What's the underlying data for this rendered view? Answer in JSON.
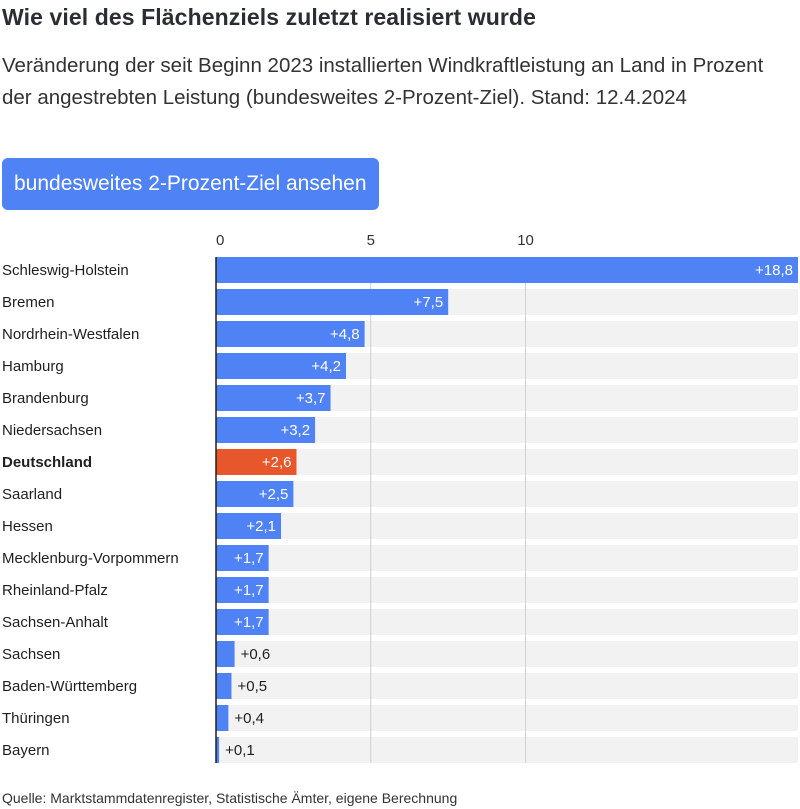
{
  "header": {
    "title": "Wie viel des Flächenziels zuletzt realisiert wurde",
    "subtitle": "Veränderung der seit Beginn 2023 installierten Windkraftleistung an Land in Prozent der angestrebten Leistung (bundesweites 2-Prozent-Ziel). Stand: 12.4.2024"
  },
  "toggle": {
    "label": "bundesweites 2-Prozent-Ziel ansehen"
  },
  "footer": {
    "source": "Quelle: Marktstammdatenregister, Statistische Ämter, eigene Berechnung"
  },
  "colors": {
    "bar": "#4e82f5",
    "highlight": "#e8572b",
    "track": "#f2f2f2",
    "axis": "#1f1f1f",
    "grid": "#cfcfcf"
  },
  "chart_data": {
    "type": "bar",
    "orientation": "horizontal",
    "categories": [
      "Schleswig-Holstein",
      "Bremen",
      "Nordrhein-Westfalen",
      "Hamburg",
      "Brandenburg",
      "Niedersachsen",
      "Deutschland",
      "Saarland",
      "Hessen",
      "Mecklenburg-Vorpommern",
      "Rheinland-Pfalz",
      "Sachsen-Anhalt",
      "Sachsen",
      "Baden-Württemberg",
      "Thüringen",
      "Bayern"
    ],
    "values": [
      18.8,
      7.5,
      4.8,
      4.2,
      3.7,
      3.2,
      2.6,
      2.5,
      2.1,
      1.7,
      1.7,
      1.7,
      0.6,
      0.5,
      0.4,
      0.1
    ],
    "value_labels": [
      "+18,8",
      "+7,5",
      "+4,8",
      "+4,2",
      "+3,7",
      "+3,2",
      "+2,6",
      "+2,5",
      "+2,1",
      "+1,7",
      "+1,7",
      "+1,7",
      "+0,6",
      "+0,5",
      "+0,4",
      "+0,1"
    ],
    "highlight": "Deutschland",
    "xticks": [
      "0",
      "5",
      "10"
    ],
    "xtick_values": [
      0,
      5,
      10
    ],
    "xlim": [
      0,
      18.8
    ],
    "grid": true
  }
}
